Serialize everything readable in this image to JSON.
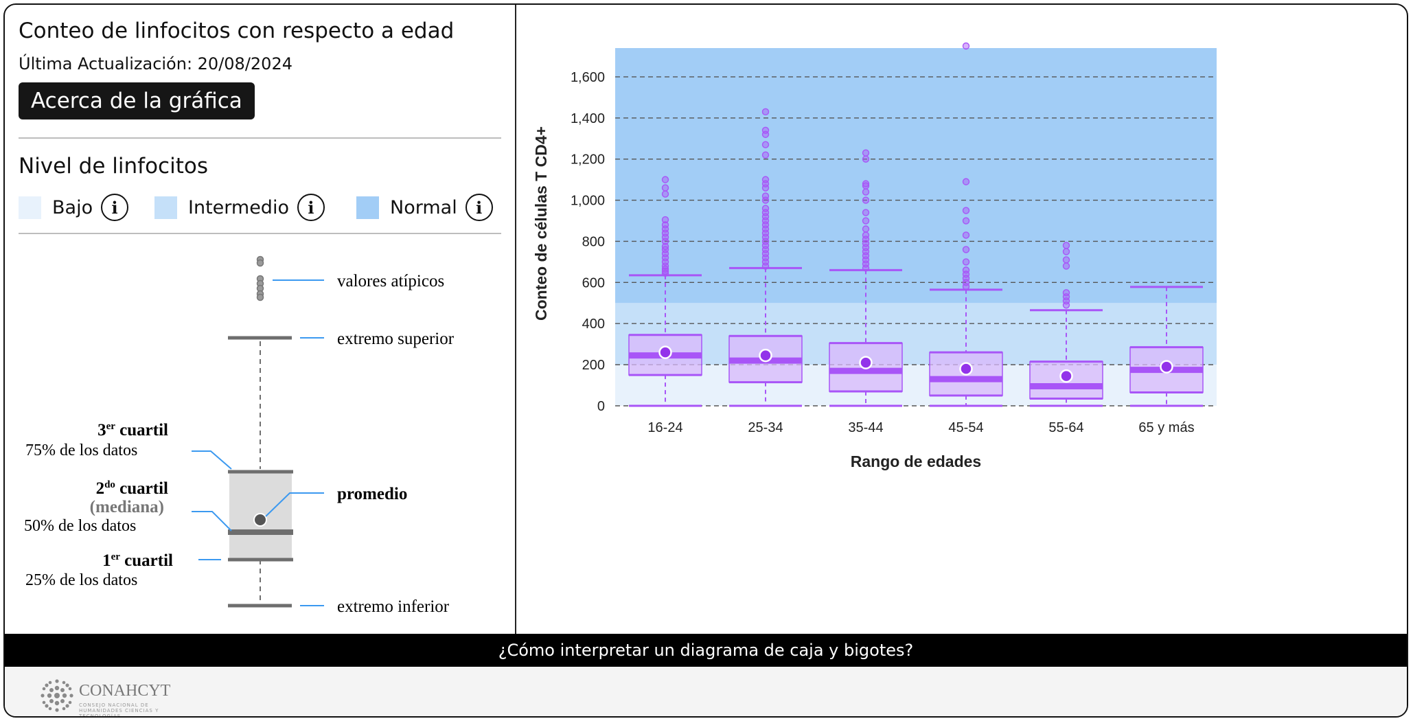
{
  "header": {
    "title": "Conteo de linfocitos con respecto a edad",
    "updated": "Última Actualización: 20/08/2024",
    "about_button": "Acerca de la gráfica"
  },
  "levels": {
    "title": "Nivel de linfocitos",
    "items": [
      {
        "label": "Bajo",
        "color": "#e8f2fc"
      },
      {
        "label": "Intermedio",
        "color": "#c5e0f9"
      },
      {
        "label": "Normal",
        "color": "#a2cdf6"
      }
    ]
  },
  "explainer": {
    "outliers": "valores atípicos",
    "upper_extreme": "extremo superior",
    "q3_title": "3",
    "q3_sup": "er",
    "q3_suffix": " cuartil",
    "q3_sub": "75% de los datos",
    "q2_title": "2",
    "q2_sup": "do",
    "q2_suffix": " cuartil",
    "q2_median": "(mediana)",
    "q2_sub": "50% de los datos",
    "q1_title": "1",
    "q1_sup": "er",
    "q1_suffix": " cuartil",
    "q1_sub": "25% de los datos",
    "mean": "promedio",
    "lower_extreme": "extremo inferior"
  },
  "bottom_bar": "¿Cómo interpretar un diagrama de caja y bigotes?",
  "footer": {
    "logo": "CONAHCYT",
    "logo_sub": "CONSEJO NACIONAL DE HUMANIDADES CIENCIAS Y TECNOLOGÍAS"
  },
  "colors": {
    "box": "#a855f7",
    "box_fill": "#d8b8fb",
    "bajo": "#e8f2fc",
    "intermedio": "#c5e0f9",
    "normal": "#a2cdf6"
  },
  "chart_data": {
    "type": "boxplot",
    "xlabel": "Rango de edades",
    "ylabel": "Conteo de células T CD4+",
    "ylim": [
      0,
      1740
    ],
    "yticks": [
      0,
      200,
      400,
      600,
      800,
      1000,
      1200,
      1400,
      1600
    ],
    "ytick_labels": [
      "0",
      "200",
      "400",
      "600",
      "800",
      "1,000",
      "1,200",
      "1,400",
      "1,600"
    ],
    "bands": [
      {
        "name": "Bajo",
        "from": 0,
        "to": 200
      },
      {
        "name": "Intermedio",
        "from": 200,
        "to": 500
      },
      {
        "name": "Normal",
        "from": 500,
        "to": 1740
      }
    ],
    "categories": [
      "16-24",
      "25-34",
      "35-44",
      "45-54",
      "55-64",
      "65 y más"
    ],
    "boxes": [
      {
        "min": 0,
        "q1": 150,
        "median": 245,
        "q3": 345,
        "max": 635,
        "mean": 260,
        "outliers": [
          645,
          655,
          665,
          680,
          700,
          720,
          740,
          760,
          775,
          800,
          820,
          840,
          860,
          880,
          905,
          1030,
          1060,
          1100
        ]
      },
      {
        "min": 0,
        "q1": 115,
        "median": 220,
        "q3": 340,
        "max": 670,
        "mean": 245,
        "outliers": [
          680,
          700,
          720,
          740,
          760,
          780,
          800,
          820,
          840,
          860,
          880,
          900,
          920,
          940,
          960,
          1000,
          1020,
          1060,
          1080,
          1100,
          1220,
          1270,
          1320,
          1340,
          1430
        ]
      },
      {
        "min": 0,
        "q1": 70,
        "median": 170,
        "q3": 305,
        "max": 660,
        "mean": 210,
        "outliers": [
          670,
          690,
          710,
          730,
          750,
          770,
          790,
          810,
          830,
          860,
          900,
          940,
          1000,
          1040,
          1070,
          1080,
          1200,
          1230
        ]
      },
      {
        "min": 0,
        "q1": 50,
        "median": 130,
        "q3": 260,
        "max": 565,
        "mean": 180,
        "outliers": [
          580,
          600,
          620,
          640,
          660,
          700,
          760,
          830,
          900,
          950,
          1090,
          1750
        ]
      },
      {
        "min": 0,
        "q1": 35,
        "median": 95,
        "q3": 215,
        "max": 465,
        "mean": 145,
        "outliers": [
          490,
          510,
          530,
          550,
          680,
          710,
          750,
          780
        ]
      },
      {
        "min": 0,
        "q1": 65,
        "median": 175,
        "q3": 285,
        "max": 578,
        "mean": 190,
        "outliers": []
      }
    ]
  }
}
